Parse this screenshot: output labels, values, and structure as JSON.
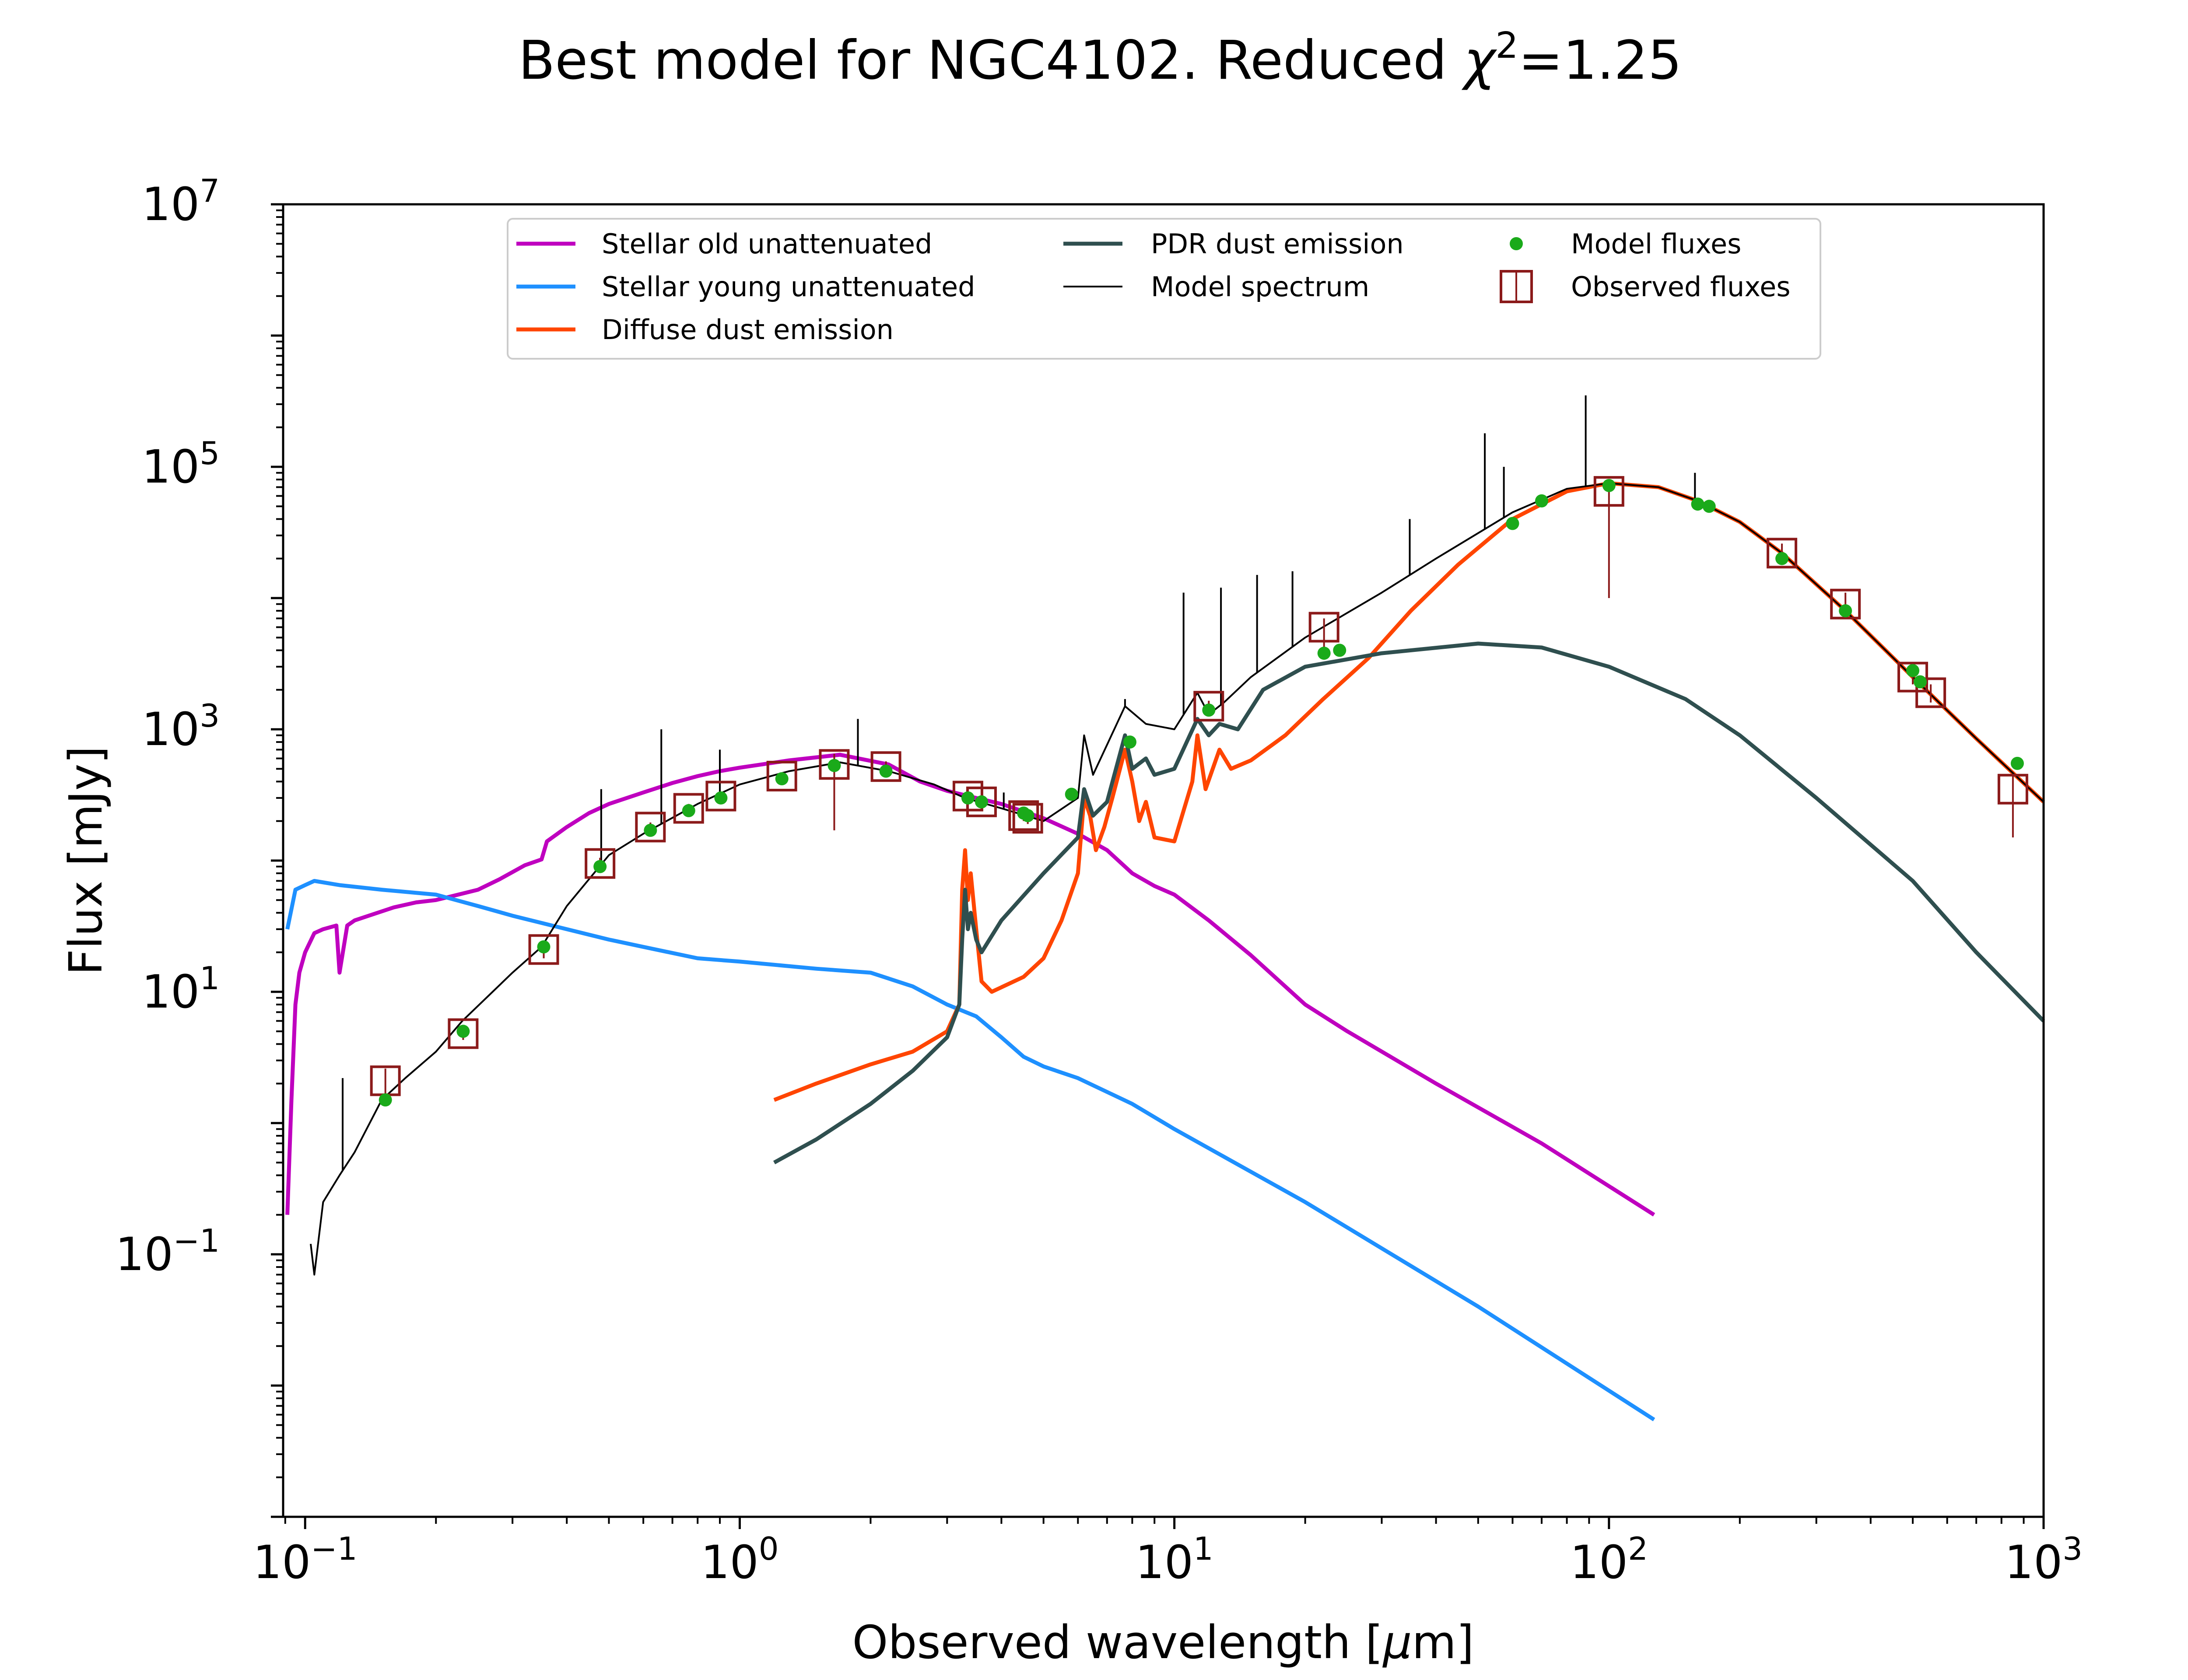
{
  "chart_data": {
    "type": "line",
    "title": {
      "prefix": "Best model for NGC4102. Reduced ",
      "chi_symbol": "χ",
      "chi_power": "2",
      "suffix": "=1.25"
    },
    "xlabel": {
      "prefix": "Observed wavelength [",
      "unit_mu": "μ",
      "unit_rest": "m]"
    },
    "ylabel": "Flux [mJy]",
    "xscale": "log",
    "yscale": "log",
    "xlim": [
      0.089,
      1000
    ],
    "ylim": [
      0.001,
      10000000
    ],
    "x_ticks": [
      {
        "value": 0.1,
        "base": "10",
        "exp": "−1"
      },
      {
        "value": 1,
        "base": "10",
        "exp": "0"
      },
      {
        "value": 10,
        "base": "10",
        "exp": "1"
      },
      {
        "value": 100,
        "base": "10",
        "exp": "2"
      },
      {
        "value": 1000,
        "base": "10",
        "exp": "3"
      }
    ],
    "y_ticks": [
      {
        "value": 0.1,
        "base": "10",
        "exp": "−1"
      },
      {
        "value": 10,
        "base": "10",
        "exp": "1"
      },
      {
        "value": 1000,
        "base": "10",
        "exp": "3"
      },
      {
        "value": 100000,
        "base": "10",
        "exp": "5"
      },
      {
        "value": 10000000,
        "base": "10",
        "exp": "7"
      }
    ],
    "grid": false,
    "legend_position": "top",
    "series": [
      {
        "name": "Stellar old unattenuated",
        "color": "#bf00bf",
        "points": [
          [
            0.091,
            0.2
          ],
          [
            0.093,
            1.5
          ],
          [
            0.095,
            8
          ],
          [
            0.097,
            14
          ],
          [
            0.1,
            20
          ],
          [
            0.105,
            28
          ],
          [
            0.11,
            30
          ],
          [
            0.118,
            32
          ],
          [
            0.12,
            14
          ],
          [
            0.125,
            32
          ],
          [
            0.13,
            35
          ],
          [
            0.14,
            38
          ],
          [
            0.16,
            44
          ],
          [
            0.18,
            48
          ],
          [
            0.2,
            50
          ],
          [
            0.22,
            54
          ],
          [
            0.25,
            60
          ],
          [
            0.28,
            72
          ],
          [
            0.32,
            92
          ],
          [
            0.35,
            102
          ],
          [
            0.36,
            140
          ],
          [
            0.4,
            180
          ],
          [
            0.45,
            230
          ],
          [
            0.5,
            270
          ],
          [
            0.6,
            330
          ],
          [
            0.7,
            390
          ],
          [
            0.8,
            440
          ],
          [
            0.9,
            480
          ],
          [
            1.0,
            510
          ],
          [
            1.3,
            580
          ],
          [
            1.7,
            640
          ],
          [
            2.2,
            540
          ],
          [
            2.6,
            400
          ],
          [
            3.0,
            340
          ],
          [
            3.5,
            300
          ],
          [
            4.0,
            270
          ],
          [
            5.0,
            210
          ],
          [
            6.0,
            160
          ],
          [
            7.0,
            120
          ],
          [
            8.0,
            80
          ],
          [
            9.0,
            64
          ],
          [
            10.0,
            55
          ],
          [
            12.0,
            35
          ],
          [
            15.0,
            19
          ],
          [
            20.0,
            8
          ],
          [
            25.0,
            5
          ],
          [
            40.0,
            2
          ],
          [
            70.0,
            0.7
          ],
          [
            127.0,
            0.2
          ]
        ]
      },
      {
        "name": "Stellar young unattenuated",
        "color": "#1e90ff",
        "points": [
          [
            0.091,
            30
          ],
          [
            0.095,
            60
          ],
          [
            0.1,
            65
          ],
          [
            0.105,
            70
          ],
          [
            0.12,
            65
          ],
          [
            0.15,
            60
          ],
          [
            0.2,
            55
          ],
          [
            0.25,
            45
          ],
          [
            0.3,
            38
          ],
          [
            0.4,
            30
          ],
          [
            0.5,
            25
          ],
          [
            0.6,
            22
          ],
          [
            0.8,
            18
          ],
          [
            1.0,
            17
          ],
          [
            1.5,
            15
          ],
          [
            2.0,
            14
          ],
          [
            2.5,
            11
          ],
          [
            3.0,
            8
          ],
          [
            3.5,
            6.5
          ],
          [
            4.0,
            4.5
          ],
          [
            4.5,
            3.2
          ],
          [
            5.0,
            2.7
          ],
          [
            6.0,
            2.2
          ],
          [
            8.0,
            1.4
          ],
          [
            10.0,
            0.9
          ],
          [
            20.0,
            0.25
          ],
          [
            50.0,
            0.04
          ],
          [
            127.0,
            0.0055
          ]
        ]
      },
      {
        "name": "Diffuse dust emission",
        "color": "#ff4500",
        "points": [
          [
            1.2,
            1.5
          ],
          [
            1.5,
            2.0
          ],
          [
            2.0,
            2.8
          ],
          [
            2.5,
            3.5
          ],
          [
            3.0,
            5
          ],
          [
            3.2,
            8
          ],
          [
            3.25,
            60
          ],
          [
            3.3,
            120
          ],
          [
            3.35,
            50
          ],
          [
            3.4,
            80
          ],
          [
            3.5,
            30
          ],
          [
            3.6,
            12
          ],
          [
            3.8,
            10
          ],
          [
            4.5,
            13
          ],
          [
            5.0,
            18
          ],
          [
            5.5,
            35
          ],
          [
            6.0,
            80
          ],
          [
            6.2,
            300
          ],
          [
            6.4,
            220
          ],
          [
            6.6,
            120
          ],
          [
            6.9,
            180
          ],
          [
            7.2,
            300
          ],
          [
            7.7,
            700
          ],
          [
            8.0,
            400
          ],
          [
            8.3,
            200
          ],
          [
            8.6,
            280
          ],
          [
            9.0,
            150
          ],
          [
            10.0,
            140
          ],
          [
            11.0,
            400
          ],
          [
            11.3,
            900
          ],
          [
            11.8,
            350
          ],
          [
            12.7,
            700
          ],
          [
            13.5,
            500
          ],
          [
            15.0,
            580
          ],
          [
            18.0,
            900
          ],
          [
            22.0,
            1700
          ],
          [
            28.0,
            3500
          ],
          [
            35.0,
            8000
          ],
          [
            45.0,
            18000
          ],
          [
            60.0,
            40000
          ],
          [
            80.0,
            65000
          ],
          [
            100.0,
            75000
          ],
          [
            130.0,
            70000
          ],
          [
            160.0,
            55000
          ],
          [
            200.0,
            38000
          ],
          [
            250.0,
            22000
          ],
          [
            350.0,
            8000
          ],
          [
            500.0,
            2500
          ],
          [
            700.0,
            850
          ],
          [
            1000.0,
            280
          ]
        ]
      },
      {
        "name": "PDR dust emission",
        "color": "#2f4f4f",
        "points": [
          [
            1.2,
            0.5
          ],
          [
            1.5,
            0.75
          ],
          [
            2.0,
            1.4
          ],
          [
            2.5,
            2.5
          ],
          [
            3.0,
            4.5
          ],
          [
            3.2,
            8
          ],
          [
            3.25,
            25
          ],
          [
            3.3,
            60
          ],
          [
            3.35,
            30
          ],
          [
            3.4,
            40
          ],
          [
            3.5,
            25
          ],
          [
            3.6,
            20
          ],
          [
            4.0,
            35
          ],
          [
            5.0,
            80
          ],
          [
            6.0,
            150
          ],
          [
            6.2,
            350
          ],
          [
            6.5,
            220
          ],
          [
            7.0,
            280
          ],
          [
            7.7,
            900
          ],
          [
            8.0,
            500
          ],
          [
            8.6,
            600
          ],
          [
            9.0,
            450
          ],
          [
            10.0,
            500
          ],
          [
            11.3,
            1200
          ],
          [
            12.0,
            900
          ],
          [
            12.7,
            1100
          ],
          [
            14.0,
            1000
          ],
          [
            16.0,
            2000
          ],
          [
            20.0,
            3000
          ],
          [
            30.0,
            3800
          ],
          [
            50.0,
            4500
          ],
          [
            70.0,
            4200
          ],
          [
            100.0,
            3000
          ],
          [
            150.0,
            1700
          ],
          [
            200.0,
            900
          ],
          [
            300.0,
            300
          ],
          [
            500.0,
            70
          ],
          [
            700.0,
            20
          ],
          [
            1000.0,
            6
          ]
        ]
      },
      {
        "name": "Model spectrum",
        "color": "#000000",
        "points": [
          [
            0.103,
            0.12
          ],
          [
            0.105,
            0.07
          ],
          [
            0.11,
            0.25
          ],
          [
            0.12,
            0.4
          ],
          [
            0.13,
            0.6
          ],
          [
            0.15,
            1.5
          ],
          [
            0.17,
            2.2
          ],
          [
            0.2,
            3.5
          ],
          [
            0.23,
            6
          ],
          [
            0.27,
            10
          ],
          [
            0.3,
            14
          ],
          [
            0.35,
            22
          ],
          [
            0.4,
            45
          ],
          [
            0.5,
            110
          ],
          [
            0.6,
            160
          ],
          [
            0.8,
            270
          ],
          [
            1.0,
            380
          ],
          [
            1.3,
            480
          ],
          [
            1.7,
            560
          ],
          [
            2.2,
            480
          ],
          [
            2.8,
            380
          ],
          [
            3.3,
            300
          ],
          [
            4.0,
            250
          ],
          [
            5.0,
            200
          ],
          [
            6.0,
            300
          ],
          [
            6.2,
            900
          ],
          [
            6.5,
            450
          ],
          [
            7.7,
            1500
          ],
          [
            8.6,
            1100
          ],
          [
            10.0,
            1000
          ],
          [
            11.3,
            1900
          ],
          [
            12.0,
            1300
          ],
          [
            13.0,
            1600
          ],
          [
            15.0,
            2500
          ],
          [
            20.0,
            5000
          ],
          [
            30.0,
            11000
          ],
          [
            40.0,
            20000
          ],
          [
            60.0,
            45000
          ],
          [
            80.0,
            68000
          ],
          [
            100.0,
            75000
          ],
          [
            130.0,
            70000
          ],
          [
            160.0,
            55000
          ],
          [
            200.0,
            38000
          ],
          [
            250.0,
            22000
          ],
          [
            350.0,
            8000
          ],
          [
            500.0,
            2500
          ],
          [
            700.0,
            850
          ],
          [
            1000.0,
            280
          ]
        ]
      }
    ],
    "model_spectrum_lines": [
      {
        "x": 0.122,
        "top": 2.2
      },
      {
        "x": 0.48,
        "top": 350
      },
      {
        "x": 0.66,
        "top": 1000
      },
      {
        "x": 0.9,
        "top": 700
      },
      {
        "x": 1.87,
        "top": 1200
      },
      {
        "x": 4.05,
        "top": 330
      },
      {
        "x": 7.7,
        "top": 1700
      },
      {
        "x": 10.5,
        "top": 11000
      },
      {
        "x": 12.8,
        "top": 12000
      },
      {
        "x": 15.5,
        "top": 15000
      },
      {
        "x": 18.7,
        "top": 16000
      },
      {
        "x": 34.8,
        "top": 40000
      },
      {
        "x": 51.8,
        "top": 180000
      },
      {
        "x": 57.3,
        "top": 100000
      },
      {
        "x": 88.4,
        "top": 350000
      },
      {
        "x": 157.7,
        "top": 90000
      }
    ],
    "model_fluxes": {
      "name": "Model fluxes",
      "color": "#1aaa1a",
      "points": [
        [
          0.153,
          1.5
        ],
        [
          0.231,
          5
        ],
        [
          0.354,
          22
        ],
        [
          0.477,
          90
        ],
        [
          0.623,
          170
        ],
        [
          0.763,
          240
        ],
        [
          0.905,
          300
        ],
        [
          1.25,
          420
        ],
        [
          1.65,
          530
        ],
        [
          2.17,
          480
        ],
        [
          3.35,
          300
        ],
        [
          3.6,
          280
        ],
        [
          4.5,
          230
        ],
        [
          4.6,
          220
        ],
        [
          5.8,
          320
        ],
        [
          7.9,
          800
        ],
        [
          12.0,
          1400
        ],
        [
          22.1,
          3800
        ],
        [
          24.0,
          4000
        ],
        [
          60.0,
          37000
        ],
        [
          70.0,
          55000
        ],
        [
          100.0,
          72000
        ],
        [
          160.0,
          52000
        ],
        [
          170.0,
          50000
        ],
        [
          250.0,
          20000
        ],
        [
          350.0,
          8000
        ],
        [
          500.0,
          2800
        ],
        [
          520.0,
          2300
        ],
        [
          870.0,
          550
        ]
      ]
    },
    "observed_fluxes": {
      "name": "Observed fluxes",
      "color": "#8b1a1a",
      "points": [
        {
          "x": 0.153,
          "y": 2.1,
          "lo": 1.4,
          "hi": 2.6
        },
        {
          "x": 0.231,
          "y": 4.8,
          "lo": 4.3,
          "hi": 5.4
        },
        {
          "x": 0.354,
          "y": 21,
          "lo": 18,
          "hi": 24
        },
        {
          "x": 0.477,
          "y": 95,
          "lo": 85,
          "hi": 105
        },
        {
          "x": 0.623,
          "y": 180,
          "lo": 165,
          "hi": 195
        },
        {
          "x": 0.763,
          "y": 250,
          "lo": 230,
          "hi": 270
        },
        {
          "x": 0.905,
          "y": 310,
          "lo": 285,
          "hi": 335
        },
        {
          "x": 1.25,
          "y": 440,
          "lo": 410,
          "hi": 470
        },
        {
          "x": 1.65,
          "y": 540,
          "lo": 170,
          "hi": 650
        },
        {
          "x": 2.17,
          "y": 520,
          "lo": 470,
          "hi": 570
        },
        {
          "x": 3.35,
          "y": 310,
          "lo": 280,
          "hi": 340
        },
        {
          "x": 3.6,
          "y": 280,
          "lo": 255,
          "hi": 305
        },
        {
          "x": 4.5,
          "y": 220,
          "lo": 200,
          "hi": 240
        },
        {
          "x": 4.6,
          "y": 210,
          "lo": 190,
          "hi": 230
        },
        {
          "x": 12.0,
          "y": 1500,
          "lo": 1350,
          "hi": 1650
        },
        {
          "x": 22.1,
          "y": 6000,
          "lo": 4000,
          "hi": 7000
        },
        {
          "x": 100.0,
          "y": 65000,
          "lo": 10000,
          "hi": 80000
        },
        {
          "x": 250.0,
          "y": 22000,
          "lo": 18000,
          "hi": 26000
        },
        {
          "x": 350.0,
          "y": 9000,
          "lo": 7000,
          "hi": 11000
        },
        {
          "x": 500.0,
          "y": 2500,
          "lo": 2200,
          "hi": 2800
        },
        {
          "x": 550.0,
          "y": 1900,
          "lo": 1600,
          "hi": 2200
        },
        {
          "x": 850.0,
          "y": 350,
          "lo": 150,
          "hi": 450
        }
      ]
    }
  }
}
